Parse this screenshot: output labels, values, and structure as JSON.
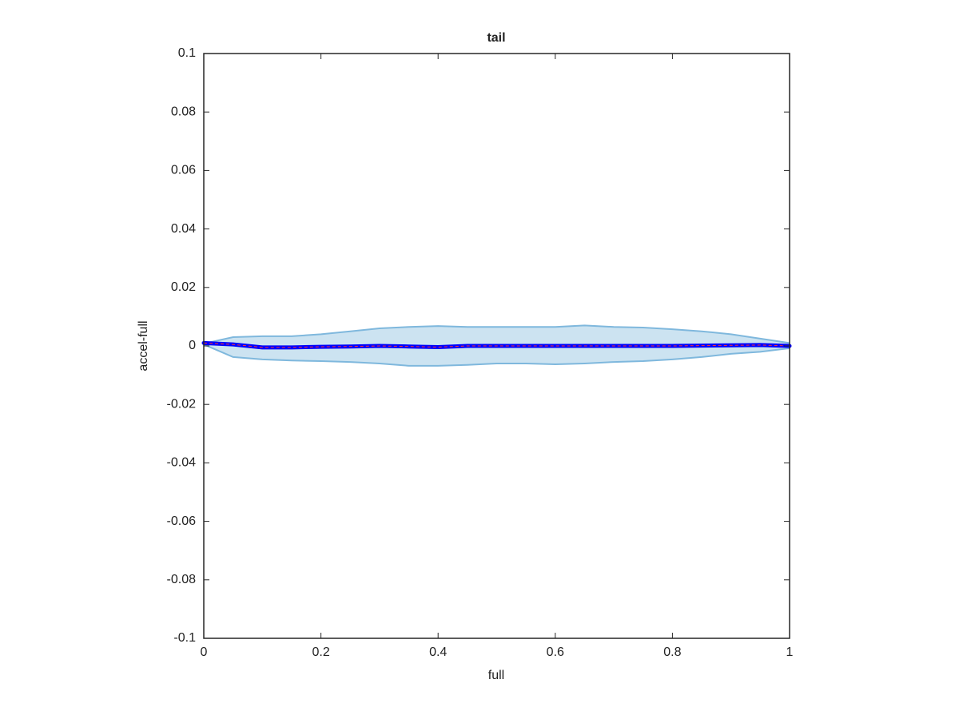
{
  "chart_data": {
    "type": "line",
    "title": "tail",
    "xlabel": "full",
    "ylabel": "accel-full",
    "x": [
      0,
      0.05,
      0.1,
      0.15,
      0.2,
      0.25,
      0.3,
      0.35,
      0.4,
      0.45,
      0.5,
      0.55,
      0.6,
      0.65,
      0.7,
      0.75,
      0.8,
      0.85,
      0.9,
      0.95,
      1
    ],
    "series": [
      {
        "color": "#0000ff",
        "values": [
          0.001,
          0.0005,
          -0.0005,
          -0.0005,
          -0.0003,
          -0.0002,
          0,
          -0.0002,
          -0.0004,
          0,
          0,
          0,
          0,
          0,
          0,
          0,
          0,
          0.0001,
          0.0002,
          0.0003,
          0
        ]
      }
    ],
    "band": {
      "color": "#7fb8dd",
      "upper": [
        0.0008,
        0.003,
        0.0033,
        0.0033,
        0.004,
        0.005,
        0.006,
        0.0065,
        0.0068,
        0.0065,
        0.0065,
        0.0065,
        0.0065,
        0.007,
        0.0065,
        0.0063,
        0.0057,
        0.005,
        0.004,
        0.0025,
        0.001
      ],
      "lower": [
        0.0005,
        -0.0038,
        -0.0046,
        -0.005,
        -0.0052,
        -0.0055,
        -0.006,
        -0.0068,
        -0.0068,
        -0.0065,
        -0.006,
        -0.006,
        -0.0063,
        -0.006,
        -0.0055,
        -0.0052,
        -0.0046,
        -0.0038,
        -0.0027,
        -0.002,
        -0.0008
      ]
    },
    "xlim": [
      0,
      1
    ],
    "ylim": [
      -0.1,
      0.1
    ],
    "xticks": [
      0,
      0.2,
      0.4,
      0.6,
      0.8,
      1
    ],
    "yticks": [
      -0.1,
      -0.08,
      -0.06,
      -0.04,
      -0.02,
      0,
      0.02,
      0.04,
      0.06,
      0.08,
      0.1
    ]
  }
}
